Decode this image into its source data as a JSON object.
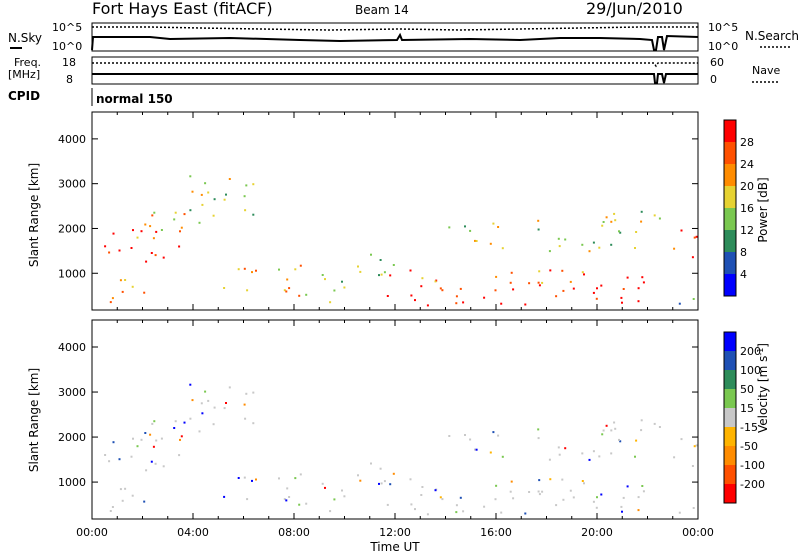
{
  "header": {
    "station": "Fort Hays East (fitACF)",
    "beam": "Beam 14",
    "date": "29/Jun/2010"
  },
  "noise_panel": {
    "left_label": "N.Sky",
    "right_label": "N.Search",
    "tick_top": "10^5",
    "tick_bottom": "10^0"
  },
  "freq_panel": {
    "left_label_1": "Freq.",
    "left_label_2": "[MHz]",
    "left_tick_top": "18",
    "left_tick_bottom": "8",
    "right_label": "Nave",
    "right_tick_top": "60",
    "right_tick_bottom": "0"
  },
  "cpid": {
    "label": "CPID",
    "value": "normal 150"
  },
  "chart_data": [
    {
      "type": "heatmap",
      "panel": "power",
      "xlabel": "",
      "ylabel": "Slant Range [km]",
      "x_ticks": [
        "00:00",
        "04:00",
        "08:00",
        "12:00",
        "16:00",
        "20:00",
        "00:00"
      ],
      "y_ticks": [
        "1000",
        "2000",
        "3000",
        "4000"
      ],
      "ylim": [
        180,
        4600
      ],
      "colorbar": {
        "label": "Power [dB]",
        "ticks": [
          "4",
          "8",
          "12",
          "16",
          "20",
          "24",
          "28"
        ],
        "colors": [
          "#0000ff",
          "#1e50b4",
          "#2d8c5a",
          "#7ac850",
          "#e6d232",
          "#ff8c00",
          "#ff5000",
          "#ff0000"
        ]
      }
    },
    {
      "type": "heatmap",
      "panel": "velocity",
      "xlabel": "Time UT",
      "ylabel": "Slant Range [km]",
      "x_ticks": [
        "00:00",
        "04:00",
        "08:00",
        "12:00",
        "16:00",
        "20:00",
        "00:00"
      ],
      "y_ticks": [
        "1000",
        "2000",
        "3000",
        "4000"
      ],
      "ylim": [
        180,
        4600
      ],
      "colorbar": {
        "label": "Velocity [m s",
        "label_sup": "-1",
        "label_end": "]",
        "ticks": [
          "200",
          "100",
          "50",
          "15",
          "-15",
          "-50",
          "-100",
          "-200"
        ],
        "colors": [
          "#0000ff",
          "#1e50b4",
          "#2d8c5a",
          "#7ac850",
          "#c8c8c8",
          "#ffb400",
          "#ff8c00",
          "#ff5000",
          "#ff0000"
        ]
      }
    }
  ]
}
